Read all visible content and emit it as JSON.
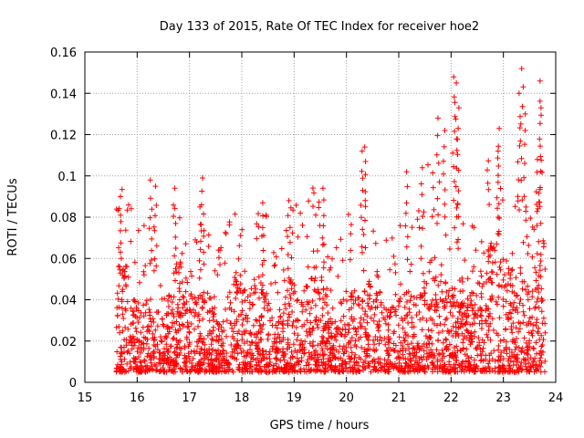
{
  "chart_data": {
    "type": "scatter",
    "title": "Day 133 of 2015, Rate Of TEC Index for receiver hoe2",
    "xlabel": "GPS time / hours",
    "ylabel": "ROTI / TECUs",
    "xlim": [
      15,
      24
    ],
    "ylim": [
      0,
      0.16
    ],
    "xticks": [
      "15",
      "16",
      "17",
      "18",
      "19",
      "20",
      "21",
      "22",
      "23",
      "24"
    ],
    "yticks": [
      "0",
      "0.02",
      "0.04",
      "0.06",
      "0.08",
      "0.1",
      "0.12",
      "0.14",
      "0.16"
    ],
    "grid": true,
    "marker": "+",
    "color": "#ff0000",
    "series": [
      {
        "name": "ROTI",
        "time_range": [
          15.6,
          23.8
        ],
        "typical_range": [
          0.005,
          0.04
        ],
        "peaks": [
          {
            "x": 15.68,
            "y": 0.09
          },
          {
            "x": 16.25,
            "y": 0.098
          },
          {
            "x": 16.35,
            "y": 0.095
          },
          {
            "x": 16.72,
            "y": 0.094
          },
          {
            "x": 17.25,
            "y": 0.099
          },
          {
            "x": 17.2,
            "y": 0.085
          },
          {
            "x": 18.4,
            "y": 0.087
          },
          {
            "x": 18.9,
            "y": 0.088
          },
          {
            "x": 19.55,
            "y": 0.094
          },
          {
            "x": 20.35,
            "y": 0.114
          },
          {
            "x": 20.3,
            "y": 0.112
          },
          {
            "x": 21.15,
            "y": 0.102
          },
          {
            "x": 21.45,
            "y": 0.104
          },
          {
            "x": 21.75,
            "y": 0.128
          },
          {
            "x": 21.88,
            "y": 0.122
          },
          {
            "x": 22.05,
            "y": 0.148
          },
          {
            "x": 22.1,
            "y": 0.145
          },
          {
            "x": 22.15,
            "y": 0.133
          },
          {
            "x": 22.92,
            "y": 0.123
          },
          {
            "x": 22.9,
            "y": 0.112
          },
          {
            "x": 23.35,
            "y": 0.152
          },
          {
            "x": 23.3,
            "y": 0.14
          },
          {
            "x": 23.42,
            "y": 0.13
          },
          {
            "x": 23.7,
            "y": 0.146
          },
          {
            "x": 23.72,
            "y": 0.133
          },
          {
            "x": 23.65,
            "y": 0.108
          }
        ]
      }
    ]
  }
}
